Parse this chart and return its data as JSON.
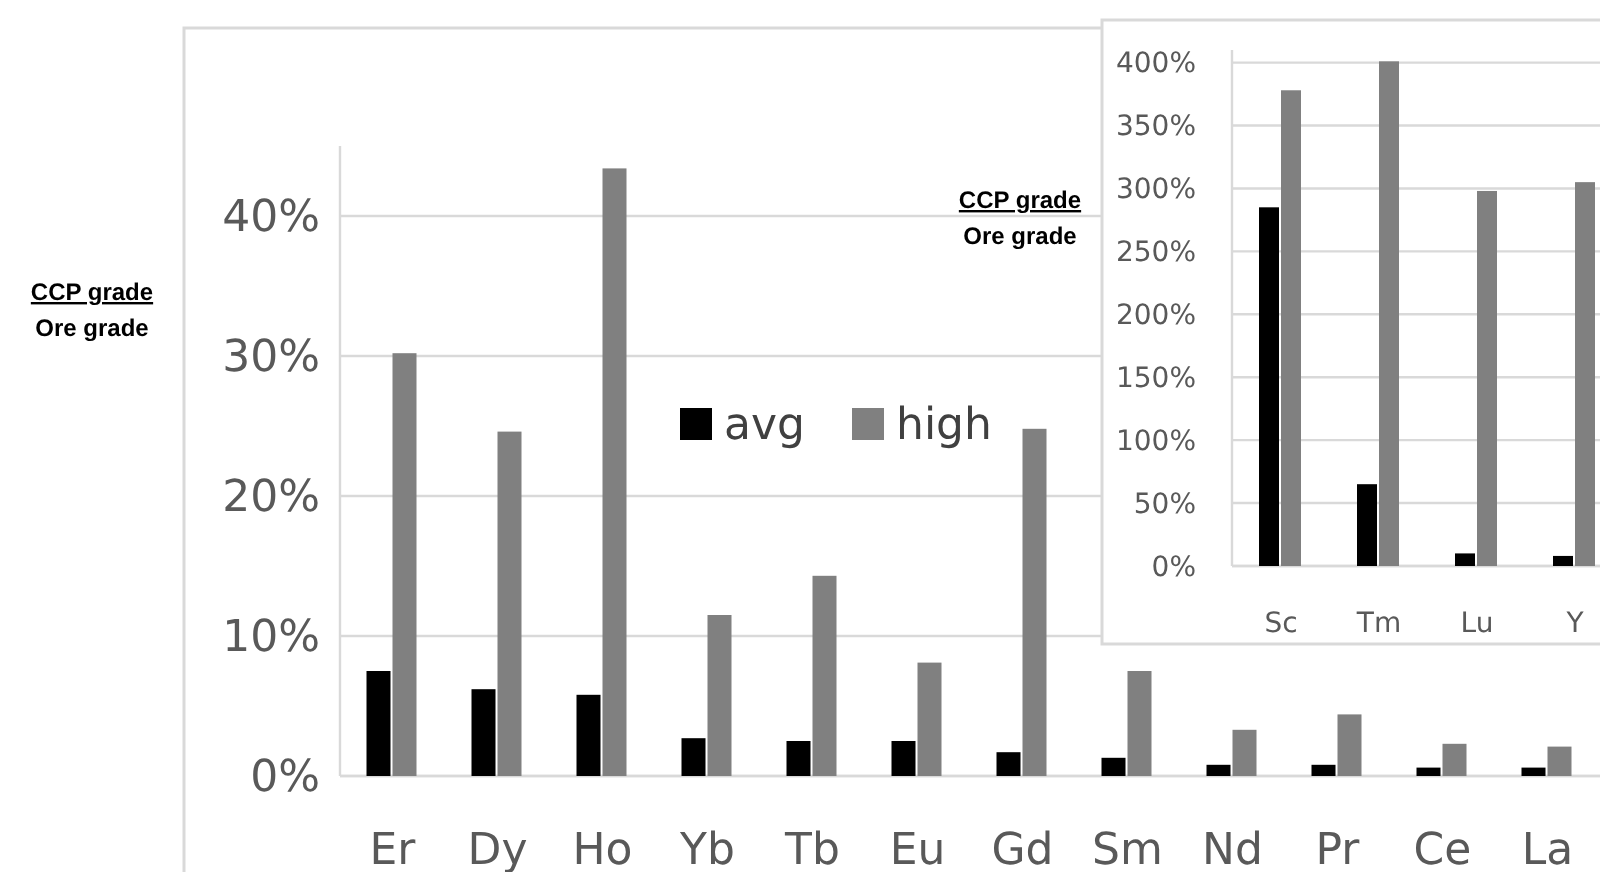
{
  "chart_data": [
    {
      "type": "bar",
      "ylabel": "CCP grade\nOre grade",
      "categories": [
        "Er",
        "Dy",
        "Ho",
        "Yb",
        "Tb",
        "Eu",
        "Gd",
        "Sm",
        "Nd",
        "Pr",
        "Ce",
        "La"
      ],
      "series": [
        {
          "name": "avg",
          "color": "#000000",
          "values": [
            7.5,
            6.2,
            5.8,
            2.7,
            2.5,
            2.5,
            1.7,
            1.3,
            0.8,
            0.8,
            0.6,
            0.6
          ]
        },
        {
          "name": "high",
          "color": "#808080",
          "values": [
            30.2,
            24.6,
            43.4,
            11.5,
            14.3,
            8.1,
            24.8,
            7.5,
            3.3,
            4.4,
            2.3,
            2.1
          ]
        }
      ],
      "ylim": [
        0,
        45
      ],
      "yticks": [
        {
          "value": 0,
          "label": "0%"
        },
        {
          "value": 10,
          "label": "10%"
        },
        {
          "value": 20,
          "label": "20%"
        },
        {
          "value": 30,
          "label": "30%"
        },
        {
          "value": 40,
          "label": "40%"
        }
      ],
      "grid": "y",
      "legend": "center"
    },
    {
      "type": "bar",
      "ylabel": "CCP grade\nOre grade",
      "categories": [
        "Sc",
        "Tm",
        "Lu",
        "Y"
      ],
      "series": [
        {
          "color": "#000000",
          "values": [
            285,
            65,
            10,
            8
          ]
        },
        {
          "color": "#808080",
          "values": [
            378,
            401,
            298,
            305
          ]
        }
      ],
      "ylim": [
        0,
        410
      ],
      "yticks": [
        {
          "value": 0,
          "label": "0%"
        },
        {
          "value": 50,
          "label": "50%"
        },
        {
          "value": 100,
          "label": "100%"
        },
        {
          "value": 150,
          "label": "150%"
        },
        {
          "value": 200,
          "label": "200%"
        },
        {
          "value": 250,
          "label": "250%"
        },
        {
          "value": 300,
          "label": "300%"
        },
        {
          "value": 350,
          "label": "350%"
        },
        {
          "value": 400,
          "label": "400%"
        }
      ],
      "grid": "y"
    }
  ]
}
